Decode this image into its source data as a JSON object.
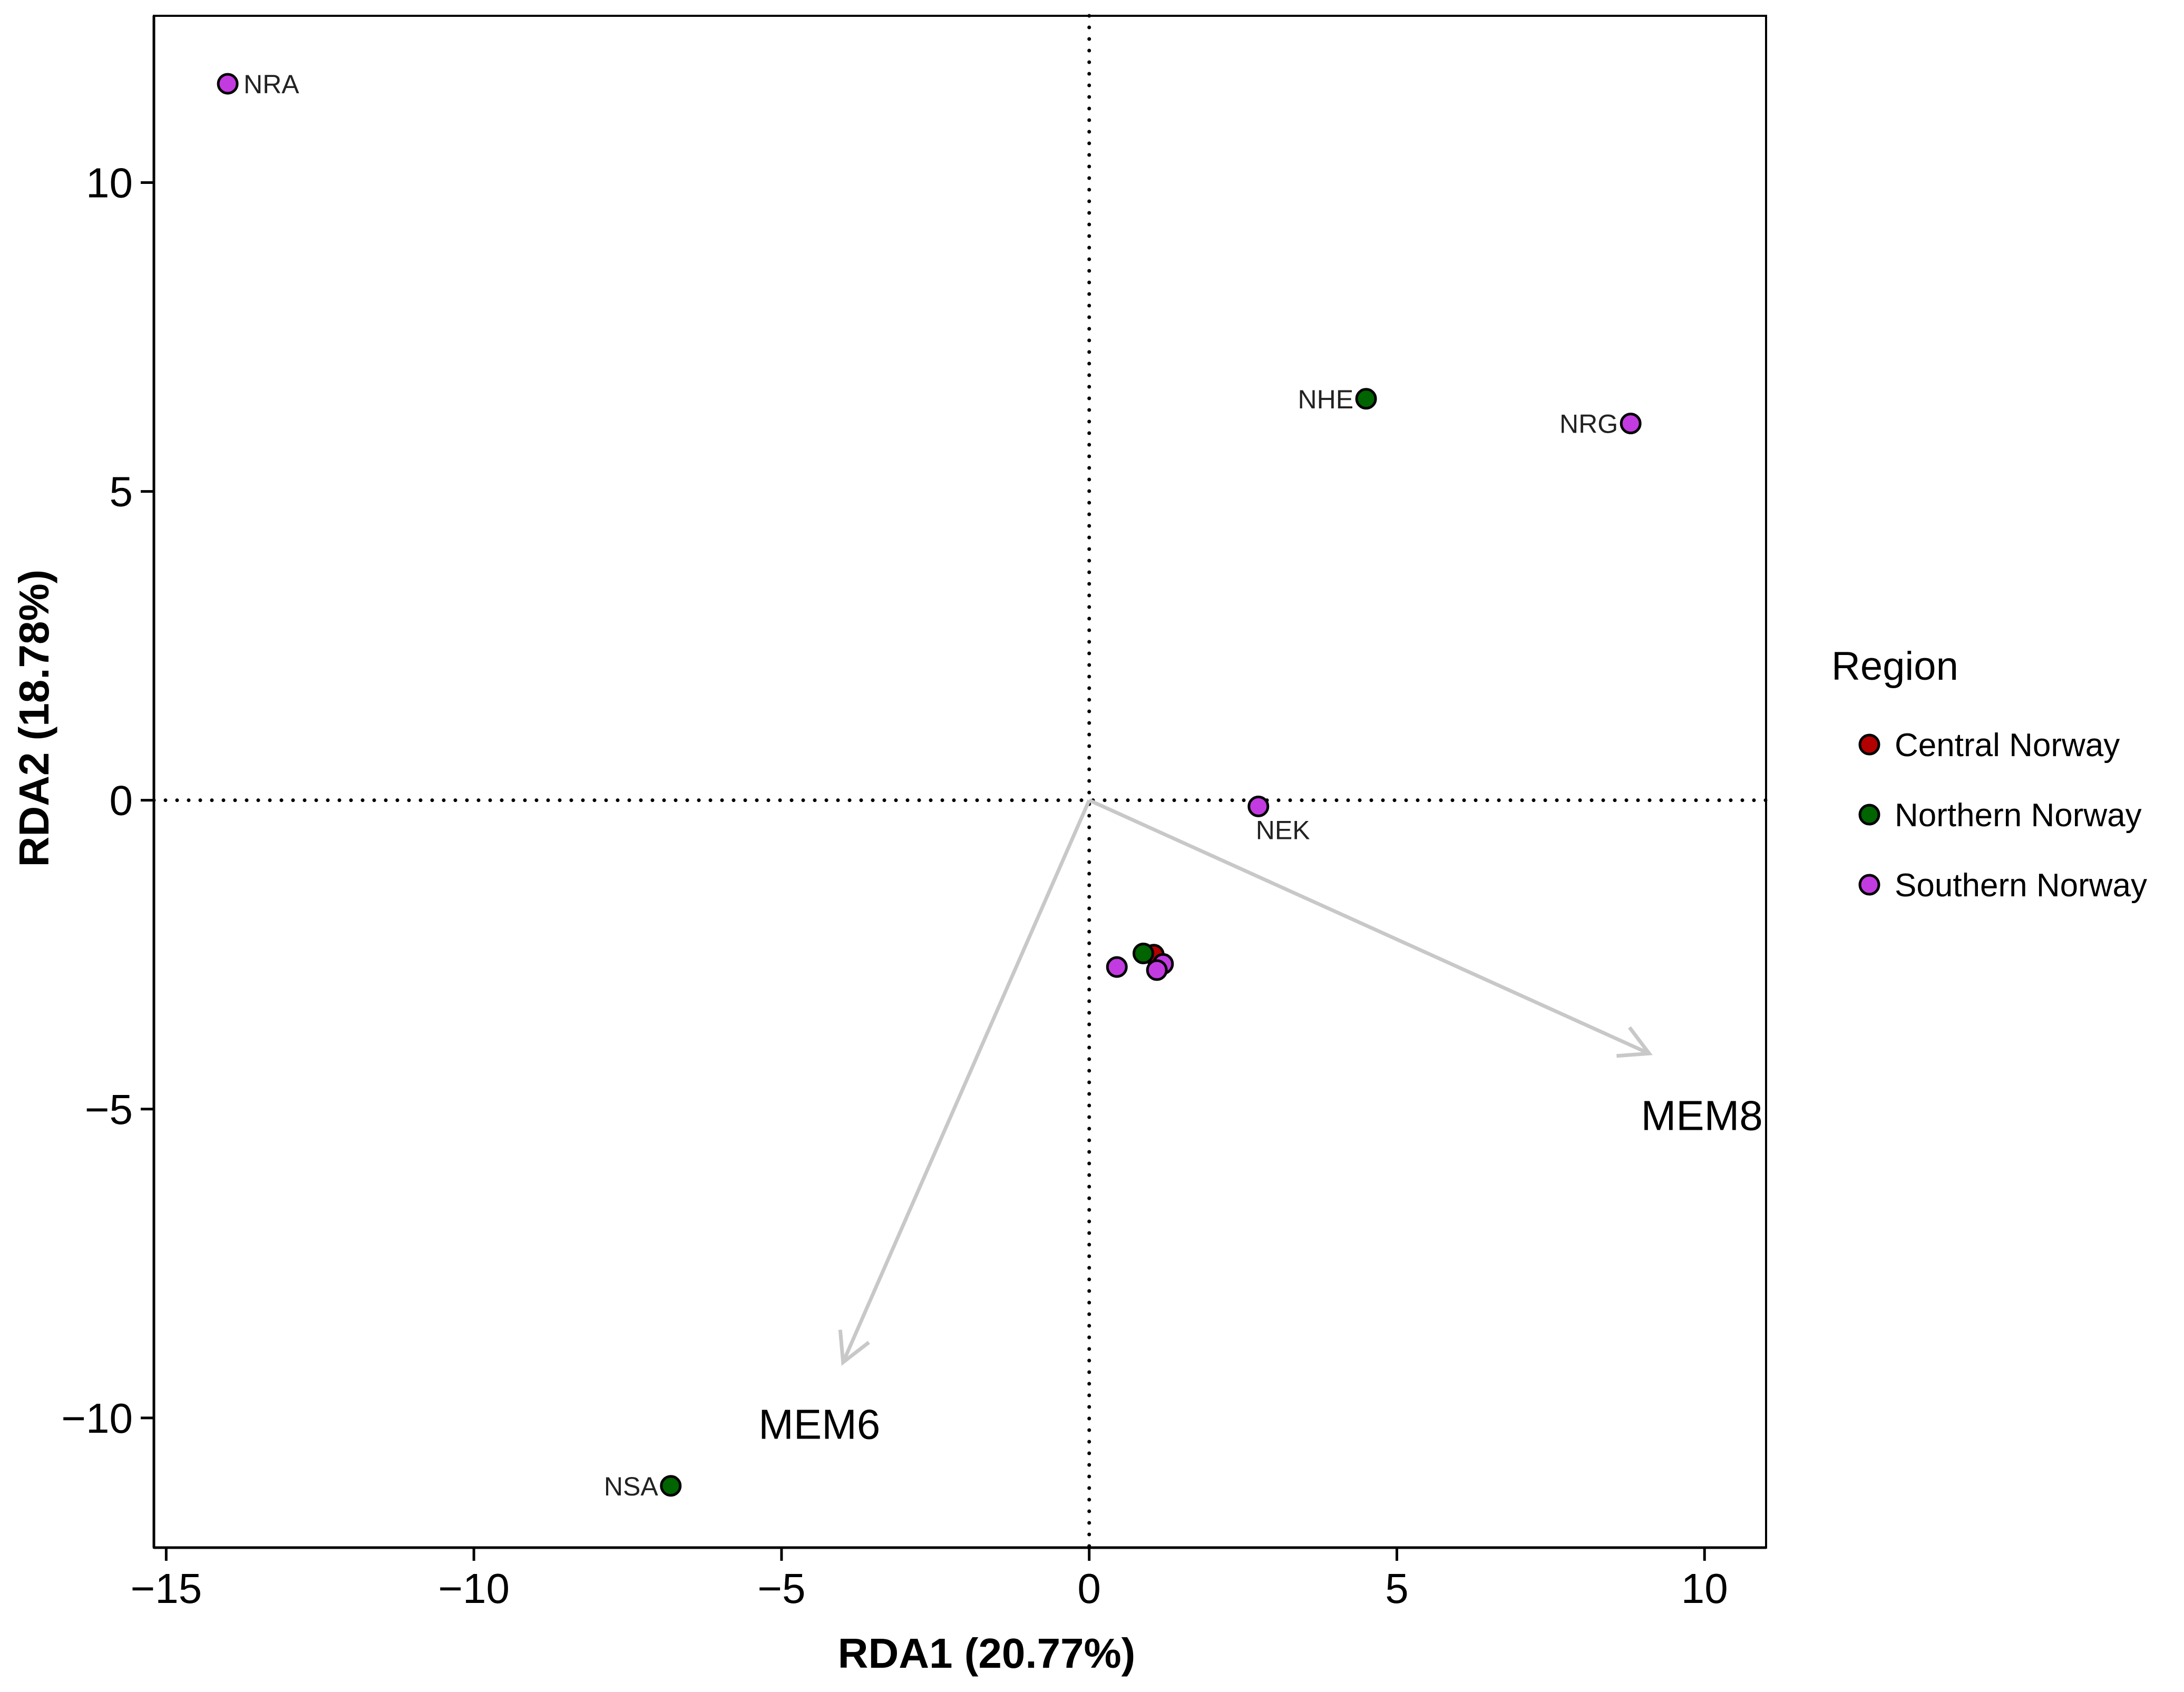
{
  "chart_data": {
    "type": "scatter",
    "title": "",
    "xlabel": "RDA1 (20.77%)",
    "ylabel": "RDA2 (18.78%)",
    "xlim": [
      -15.2,
      11.0
    ],
    "ylim": [
      -12.1,
      12.7
    ],
    "x_ticks": [
      -15,
      -10,
      -5,
      0,
      5,
      10
    ],
    "y_ticks": [
      -10,
      -5,
      0,
      5,
      10
    ],
    "x_tick_labels": [
      "−15",
      "−10",
      "−5",
      "0",
      "5",
      "10"
    ],
    "y_tick_labels": [
      "−10",
      "−5",
      "0",
      "5",
      "10"
    ],
    "reference_lines": {
      "x": 0,
      "y": 0,
      "style": "dotted"
    },
    "legend": {
      "title": "Region",
      "position": "right",
      "entries": [
        {
          "name": "Central Norway",
          "color": "#b30000"
        },
        {
          "name": "Northern Norway",
          "color": "#006400"
        },
        {
          "name": "Southern Norway",
          "color": "#c23be0"
        }
      ]
    },
    "points": [
      {
        "label": "NRA",
        "region": "Southern Norway",
        "x": -14.0,
        "y": 11.6,
        "label_side": "right"
      },
      {
        "label": "NHE",
        "region": "Northern Norway",
        "x": 4.5,
        "y": 6.5,
        "label_side": "left"
      },
      {
        "label": "NRG",
        "region": "Southern Norway",
        "x": 8.8,
        "y": 6.1,
        "label_side": "left"
      },
      {
        "label": "NEK",
        "region": "Southern Norway",
        "x": 2.75,
        "y": -0.1,
        "label_side": "below"
      },
      {
        "label": "NSA",
        "region": "Northern Norway",
        "x": -6.8,
        "y": -11.1,
        "label_side": "left"
      },
      {
        "label": "",
        "region": "Central Norway",
        "x": 1.05,
        "y": -2.5,
        "label_side": "none"
      },
      {
        "label": "",
        "region": "Southern Norway",
        "x": 1.2,
        "y": -2.65,
        "label_side": "none"
      },
      {
        "label": "",
        "region": "Southern Norway",
        "x": 0.45,
        "y": -2.7,
        "label_side": "none"
      },
      {
        "label": "",
        "region": "Southern Norway",
        "x": 1.1,
        "y": -2.75,
        "label_side": "none"
      },
      {
        "label": "",
        "region": "Northern Norway",
        "x": 0.88,
        "y": -2.48,
        "label_side": "none"
      }
    ],
    "arrows": [
      {
        "label": "MEM8",
        "color": "#c8c8c8",
        "x0": 0,
        "y0": 0,
        "x1": 9.1,
        "y1": -4.1
      },
      {
        "label": "MEM6",
        "color": "#c8c8c8",
        "x0": 0,
        "y0": 0,
        "x1": -4.0,
        "y1": -9.1
      }
    ]
  }
}
